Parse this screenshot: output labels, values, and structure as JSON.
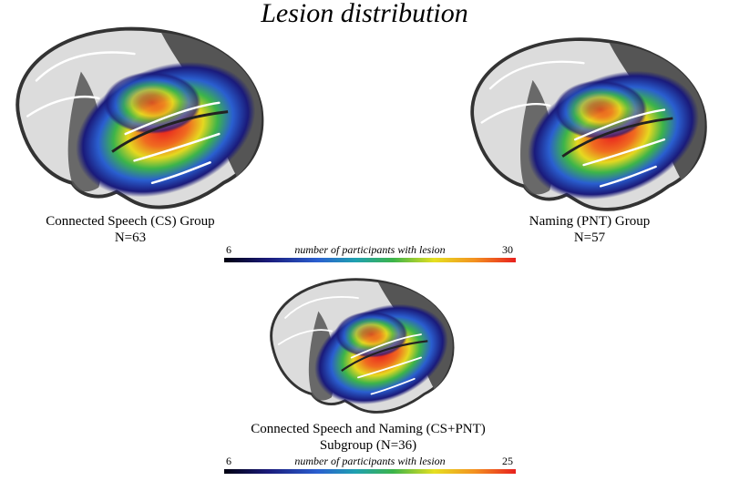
{
  "title": "Lesion distribution",
  "panels": [
    {
      "label": "Connected Speech (CS) Group",
      "n": "N=63"
    },
    {
      "label": "Naming (PNT) Group",
      "n": "N=57"
    },
    {
      "label": "Connected Speech and Naming (CS+PNT)",
      "n": "Subgroup (N=36)"
    }
  ],
  "colorbars": [
    {
      "min": 6,
      "max": 30,
      "label": "number of participants with lesion"
    },
    {
      "min": 6,
      "max": 25,
      "label": "number of participants with lesion"
    }
  ]
}
